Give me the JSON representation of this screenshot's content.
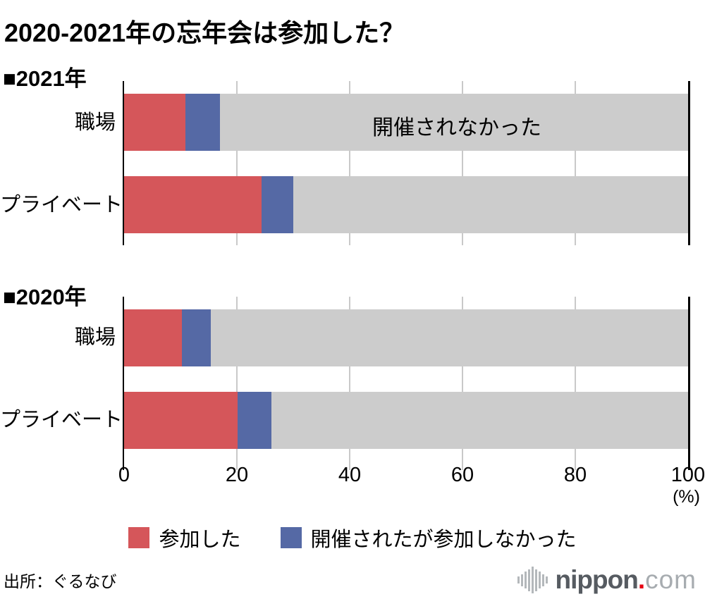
{
  "title": "2020-2021年の忘年会は参加した？",
  "colors": {
    "participated": "#d5565a",
    "held_not_participated": "#5569a5",
    "not_held": "#cccccc",
    "gridline": "#c9c9c9",
    "axis": "#000000"
  },
  "axis": {
    "tick_values": [
      0,
      20,
      40,
      60,
      80,
      100
    ],
    "tick_labels": [
      "0",
      "20",
      "40",
      "60",
      "80",
      "100"
    ],
    "unit_label": "(%)"
  },
  "chart_data": [
    {
      "type": "bar",
      "orientation": "horizontal",
      "stacked": true,
      "section_label": "■2021年",
      "categories": [
        "職場",
        "プライベート"
      ],
      "series": [
        {
          "name": "参加した",
          "color_key": "participated",
          "values": [
            10.9,
            24.4
          ]
        },
        {
          "name": "開催されたが参加しなかった",
          "color_key": "held_not_participated",
          "values": [
            6.1,
            5.6
          ]
        },
        {
          "name": "開催されなかった",
          "color_key": "not_held",
          "values": [
            83.0,
            70.0
          ]
        }
      ],
      "annotation": "開催されなかった",
      "xlim": [
        0,
        100
      ],
      "grid": true,
      "legend_position": "bottom"
    },
    {
      "type": "bar",
      "orientation": "horizontal",
      "stacked": true,
      "section_label": "■2020年",
      "categories": [
        "職場",
        "プライベート"
      ],
      "series": [
        {
          "name": "参加した",
          "color_key": "participated",
          "values": [
            10.2,
            20.1
          ]
        },
        {
          "name": "開催されたが参加しなかった",
          "color_key": "held_not_participated",
          "values": [
            5.2,
            6.0
          ]
        },
        {
          "name": "開催されなかった",
          "color_key": "not_held",
          "values": [
            84.6,
            73.9
          ]
        }
      ],
      "annotation": "",
      "xlim": [
        0,
        100
      ],
      "grid": true,
      "legend_position": "bottom"
    }
  ],
  "legend": [
    {
      "label": "参加した",
      "color_key": "participated"
    },
    {
      "label": "開催されたが参加しなかった",
      "color_key": "held_not_participated"
    }
  ],
  "footer": {
    "source": "出所：ぐるなび",
    "logo": {
      "word": "nippon",
      "dot": ".",
      "tld": "com"
    }
  }
}
